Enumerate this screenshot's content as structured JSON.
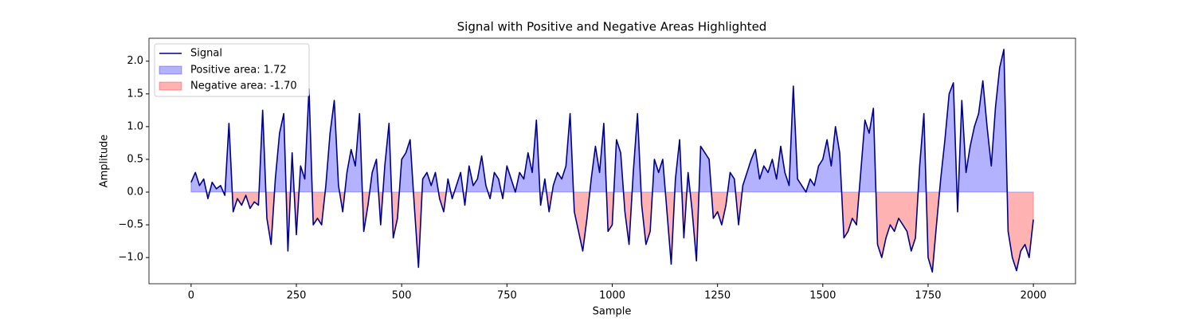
{
  "chart_data": {
    "type": "line",
    "title": "Signal with Positive and Negative Areas Highlighted",
    "x_label": "Sample",
    "y_label": "Amplitude",
    "x": [
      0,
      10,
      20,
      30,
      40,
      50,
      60,
      70,
      80,
      90,
      100,
      110,
      120,
      130,
      140,
      150,
      160,
      170,
      180,
      190,
      200,
      210,
      220,
      230,
      240,
      250,
      260,
      270,
      280,
      290,
      300,
      310,
      320,
      330,
      340,
      350,
      360,
      370,
      380,
      390,
      400,
      410,
      420,
      430,
      440,
      450,
      460,
      470,
      480,
      490,
      500,
      510,
      520,
      530,
      540,
      550,
      560,
      570,
      580,
      590,
      600,
      610,
      620,
      630,
      640,
      650,
      660,
      670,
      680,
      690,
      700,
      710,
      720,
      730,
      740,
      750,
      760,
      770,
      780,
      790,
      800,
      810,
      820,
      830,
      840,
      850,
      860,
      870,
      880,
      890,
      900,
      910,
      920,
      930,
      940,
      950,
      960,
      970,
      980,
      990,
      1000,
      1010,
      1020,
      1030,
      1040,
      1050,
      1060,
      1070,
      1080,
      1090,
      1100,
      1110,
      1120,
      1130,
      1140,
      1150,
      1160,
      1170,
      1180,
      1190,
      1200,
      1210,
      1220,
      1230,
      1240,
      1250,
      1260,
      1270,
      1280,
      1290,
      1300,
      1310,
      1320,
      1330,
      1340,
      1350,
      1360,
      1370,
      1380,
      1390,
      1400,
      1410,
      1420,
      1430,
      1440,
      1450,
      1460,
      1470,
      1480,
      1490,
      1500,
      1510,
      1520,
      1530,
      1540,
      1550,
      1560,
      1570,
      1580,
      1590,
      1600,
      1610,
      1620,
      1630,
      1640,
      1650,
      1660,
      1670,
      1680,
      1690,
      1700,
      1710,
      1720,
      1730,
      1740,
      1750,
      1760,
      1770,
      1780,
      1790,
      1800,
      1810,
      1820,
      1830,
      1840,
      1850,
      1860,
      1870,
      1880,
      1890,
      1900,
      1910,
      1920,
      1930,
      1940,
      1950,
      1960,
      1970,
      1980,
      1990,
      2000
    ],
    "series": [
      {
        "name": "Signal",
        "color": "#00008b",
        "values": [
          0.15,
          0.3,
          0.1,
          0.2,
          -0.1,
          0.15,
          0.05,
          0.1,
          -0.05,
          1.05,
          -0.3,
          -0.1,
          -0.2,
          -0.05,
          -0.25,
          -0.15,
          -0.2,
          1.25,
          -0.4,
          -0.8,
          0.2,
          0.9,
          1.2,
          -0.9,
          0.6,
          -0.65,
          0.4,
          0.2,
          1.58,
          -0.5,
          -0.4,
          -0.5,
          0.1,
          0.9,
          1.4,
          0.1,
          -0.3,
          0.3,
          0.65,
          0.4,
          1.2,
          -0.6,
          -0.2,
          0.3,
          0.5,
          -0.5,
          0.4,
          1.05,
          -0.7,
          -0.4,
          0.5,
          0.6,
          0.8,
          -0.2,
          -1.15,
          0.2,
          0.3,
          0.1,
          0.3,
          -0.1,
          -0.3,
          0.2,
          -0.1,
          0.1,
          0.3,
          -0.2,
          0.4,
          0.1,
          0.2,
          0.55,
          0.1,
          -0.1,
          0.3,
          0.2,
          -0.1,
          0.4,
          0.2,
          0.0,
          0.3,
          0.2,
          0.6,
          0.3,
          1.1,
          -0.2,
          0.2,
          -0.3,
          0.1,
          0.3,
          0.2,
          0.4,
          1.2,
          -0.3,
          -0.6,
          -0.9,
          -0.4,
          0.2,
          0.7,
          0.3,
          1.05,
          -0.6,
          -0.5,
          0.8,
          0.6,
          -0.3,
          -0.8,
          0.3,
          1.2,
          -0.2,
          -0.8,
          -0.6,
          0.5,
          0.3,
          0.5,
          -0.3,
          -1.1,
          0.2,
          0.8,
          -0.7,
          0.3,
          -0.3,
          -1.05,
          0.7,
          0.6,
          0.5,
          -0.4,
          -0.3,
          -0.5,
          -0.2,
          0.3,
          0.2,
          -0.5,
          0.1,
          0.3,
          0.5,
          0.65,
          0.2,
          0.4,
          0.3,
          0.5,
          0.2,
          0.7,
          0.3,
          0.1,
          1.62,
          0.2,
          0.1,
          0.0,
          0.2,
          0.1,
          0.4,
          0.5,
          0.8,
          0.4,
          1.0,
          0.6,
          -0.7,
          -0.6,
          -0.4,
          -0.5,
          0.3,
          1.1,
          0.9,
          1.28,
          -0.8,
          -1.0,
          -0.7,
          -0.5,
          -0.6,
          -0.4,
          -0.5,
          -0.6,
          -0.9,
          -0.7,
          0.4,
          1.2,
          -1.0,
          -1.22,
          -0.5,
          0.2,
          0.8,
          1.5,
          1.67,
          -0.3,
          1.4,
          0.3,
          0.7,
          1.0,
          1.2,
          1.7,
          1.0,
          0.4,
          1.3,
          1.9,
          2.18,
          -0.6,
          -1.0,
          -1.2,
          -0.9,
          -0.8,
          -1.0,
          -0.42
        ]
      }
    ],
    "fills": [
      {
        "name": "Positive area: 1.72",
        "color": "#0000ff"
      },
      {
        "name": "Negative area: -1.70",
        "color": "#ff0000"
      }
    ],
    "xlim": [
      -100,
      2100
    ],
    "ylim": [
      -1.4,
      2.35
    ],
    "xticks": [
      0,
      250,
      500,
      750,
      1000,
      1250,
      1500,
      1750,
      2000
    ],
    "yticks": [
      {
        "value": -1,
        "label": "−1.0"
      },
      {
        "value": -0.5,
        "label": "−0.5"
      },
      {
        "value": 0,
        "label": "0.0"
      },
      0.5,
      {
        "value": 1,
        "label": "1.0"
      },
      1.5,
      {
        "value": 2,
        "label": "2.0"
      }
    ],
    "legend": "upper left"
  }
}
